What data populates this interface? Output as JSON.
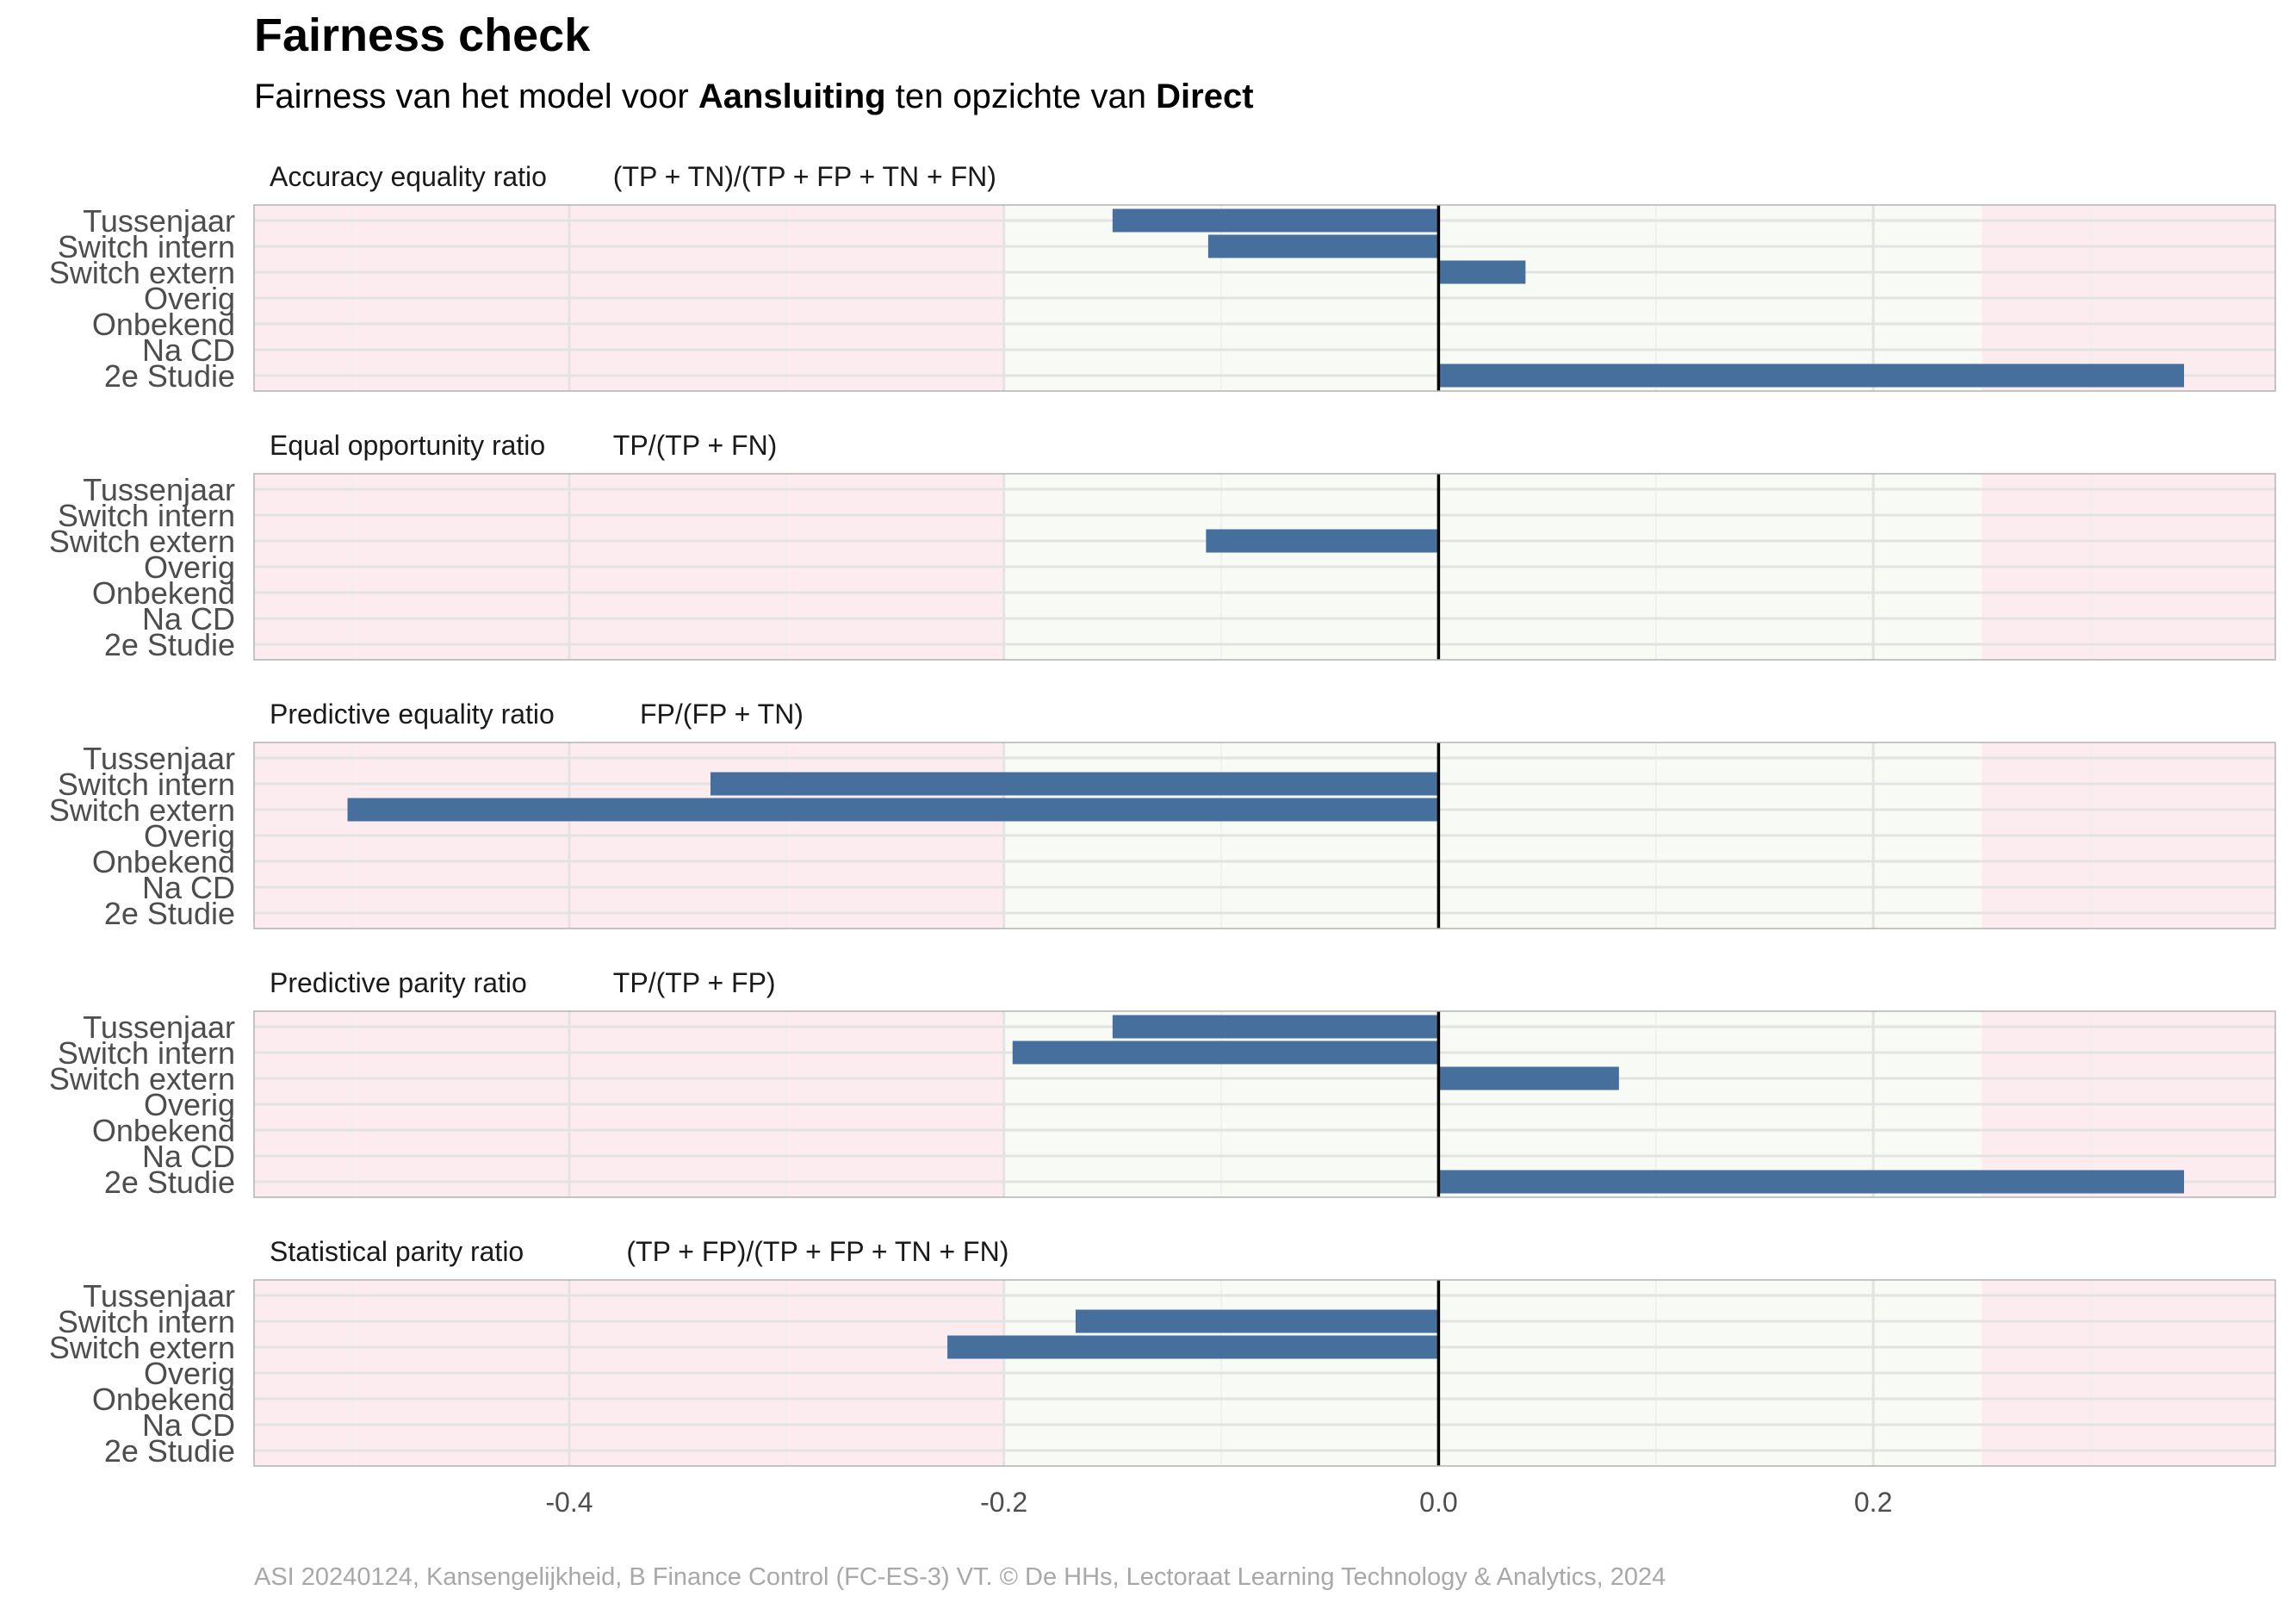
{
  "chart_data": {
    "type": "bar",
    "title": "Fairness check",
    "subtitle": {
      "prefix": "Fairness van het model voor ",
      "target": "Aansluiting",
      "middle": " ten opzichte van ",
      "reference": "Direct"
    },
    "caption": "ASI 20240124, Kansengelijkheid, B Finance Control (FC-ES-3) VT. © De HHs, Lectoraat Learning Technology & Analytics, 2024",
    "categories": [
      "Tussenjaar",
      "Switch intern",
      "Switch extern",
      "Overig",
      "Onbekend",
      "Na CD",
      "2e Studie"
    ],
    "x_ticks": [
      -0.4,
      -0.2,
      0.0,
      0.2
    ],
    "x_tick_labels": [
      "-0.4",
      "-0.2",
      "0.0",
      "0.2"
    ],
    "xlim": [
      -0.545,
      0.385
    ],
    "zones": [
      {
        "from": -0.545,
        "to": -0.2,
        "color": "#fcecef"
      },
      {
        "from": -0.2,
        "to": 0.25,
        "color": "#f7faf5"
      },
      {
        "from": 0.25,
        "to": 0.385,
        "color": "#fcecef"
      }
    ],
    "bar_color": "#466f9d",
    "grid": true,
    "panels": [
      {
        "label": "Accuracy equality ratio",
        "formula": "(TP + TN)/(TP + FP + TN + FN)",
        "values": [
          -0.15,
          -0.106,
          0.04,
          null,
          null,
          null,
          0.343
        ]
      },
      {
        "label": "Equal opportunity ratio",
        "formula": "TP/(TP + FN)",
        "values": [
          null,
          null,
          -0.107,
          null,
          null,
          null,
          null
        ]
      },
      {
        "label": "Predictive equality ratio",
        "formula": "FP/(FP + TN)",
        "values": [
          null,
          -0.335,
          -0.502,
          null,
          null,
          null,
          null
        ]
      },
      {
        "label": "Predictive parity ratio",
        "formula": "TP/(TP + FP)",
        "values": [
          -0.15,
          -0.196,
          0.083,
          null,
          null,
          null,
          0.343
        ]
      },
      {
        "label": "Statistical parity ratio",
        "formula": "(TP + FP)/(TP + FP + TN + FN)",
        "values": [
          null,
          -0.167,
          -0.226,
          null,
          null,
          null,
          null
        ]
      }
    ]
  }
}
